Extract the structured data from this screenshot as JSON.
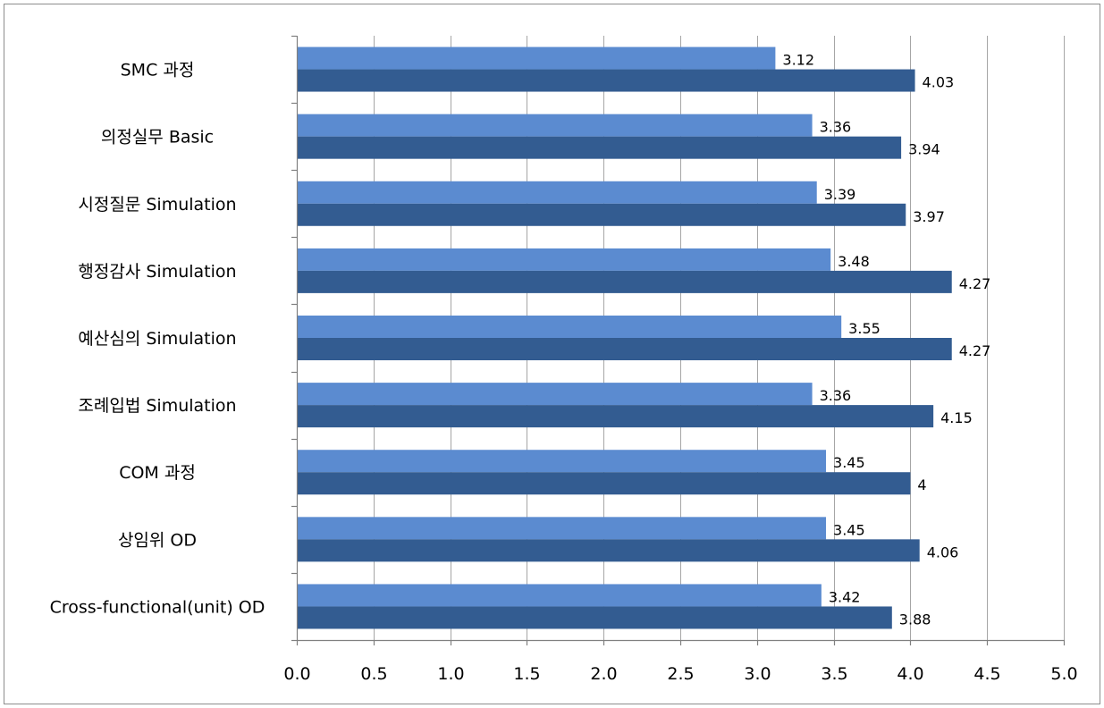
{
  "chart_data": {
    "type": "bar",
    "orientation": "horizontal",
    "categories": [
      "SMC 과정",
      "의정실무 Basic",
      "시정질문 Simulation",
      "행정감사 Simulation",
      "예산심의 Simulation",
      "조례입법 Simulation",
      "COM 과정",
      "상임위 OD",
      "Cross-functional(unit) OD"
    ],
    "series": [
      {
        "color": "#5b8bd0",
        "values": [
          3.12,
          3.36,
          3.39,
          3.48,
          3.55,
          3.36,
          3.45,
          3.45,
          3.42
        ],
        "labels": [
          "3.12",
          "3.36",
          "3.39",
          "3.48",
          "3.55",
          "3.36",
          "3.45",
          "3.45",
          "3.42"
        ]
      },
      {
        "color": "#335c91",
        "values": [
          4.03,
          3.94,
          3.97,
          4.27,
          4.27,
          4.15,
          4,
          4.06,
          3.88
        ],
        "labels": [
          "4.03",
          "3.94",
          "3.97",
          "4.27",
          "4.27",
          "4.15",
          "4",
          "4.06",
          "3.88"
        ]
      }
    ],
    "xlim": [
      0,
      5
    ],
    "x_ticks": [
      0,
      0.5,
      1,
      1.5,
      2,
      2.5,
      3,
      3.5,
      4,
      4.5,
      5
    ],
    "x_tick_labels": [
      "0.0",
      "0.5",
      "1.0",
      "1.5",
      "2.0",
      "2.5",
      "3.0",
      "3.5",
      "4.0",
      "4.5",
      "5.0"
    ],
    "title": "",
    "xlabel": "",
    "ylabel": "",
    "grid": "vertical",
    "legend": "none"
  }
}
